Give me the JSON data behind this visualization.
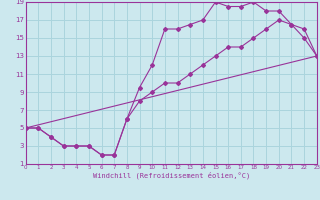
{
  "xlabel": "Windchill (Refroidissement éolien,°C)",
  "bg_color": "#cce8ee",
  "line_color": "#993399",
  "grid_color": "#aad4dd",
  "xlim": [
    0,
    23
  ],
  "ylim": [
    1,
    19
  ],
  "xticks": [
    0,
    1,
    2,
    3,
    4,
    5,
    6,
    7,
    8,
    9,
    10,
    11,
    12,
    13,
    14,
    15,
    16,
    17,
    18,
    19,
    20,
    21,
    22,
    23
  ],
  "yticks": [
    1,
    3,
    5,
    7,
    9,
    11,
    13,
    15,
    17,
    19
  ],
  "line1_x": [
    0,
    1,
    2,
    3,
    4,
    5,
    6,
    7,
    8,
    9,
    10,
    11,
    12,
    13,
    14,
    15,
    16,
    17,
    18,
    19,
    20,
    21,
    22,
    23
  ],
  "line1_y": [
    5,
    5,
    4,
    3,
    3,
    3,
    2,
    2,
    6,
    9.5,
    12,
    16,
    16,
    16.5,
    17,
    19,
    18.5,
    18.5,
    19,
    18,
    18,
    16.5,
    15,
    13
  ],
  "line2_x": [
    0,
    1,
    2,
    3,
    4,
    5,
    6,
    7,
    8,
    9,
    10,
    11,
    12,
    13,
    14,
    15,
    16,
    17,
    18,
    19,
    20,
    21,
    22,
    23
  ],
  "line2_y": [
    5,
    5,
    4,
    3,
    3,
    3,
    2,
    2,
    6,
    8,
    9,
    10,
    10,
    11,
    12,
    13,
    14,
    14,
    15,
    16,
    17,
    16.5,
    16,
    13
  ],
  "line3_x": [
    0,
    23
  ],
  "line3_y": [
    5,
    13
  ]
}
